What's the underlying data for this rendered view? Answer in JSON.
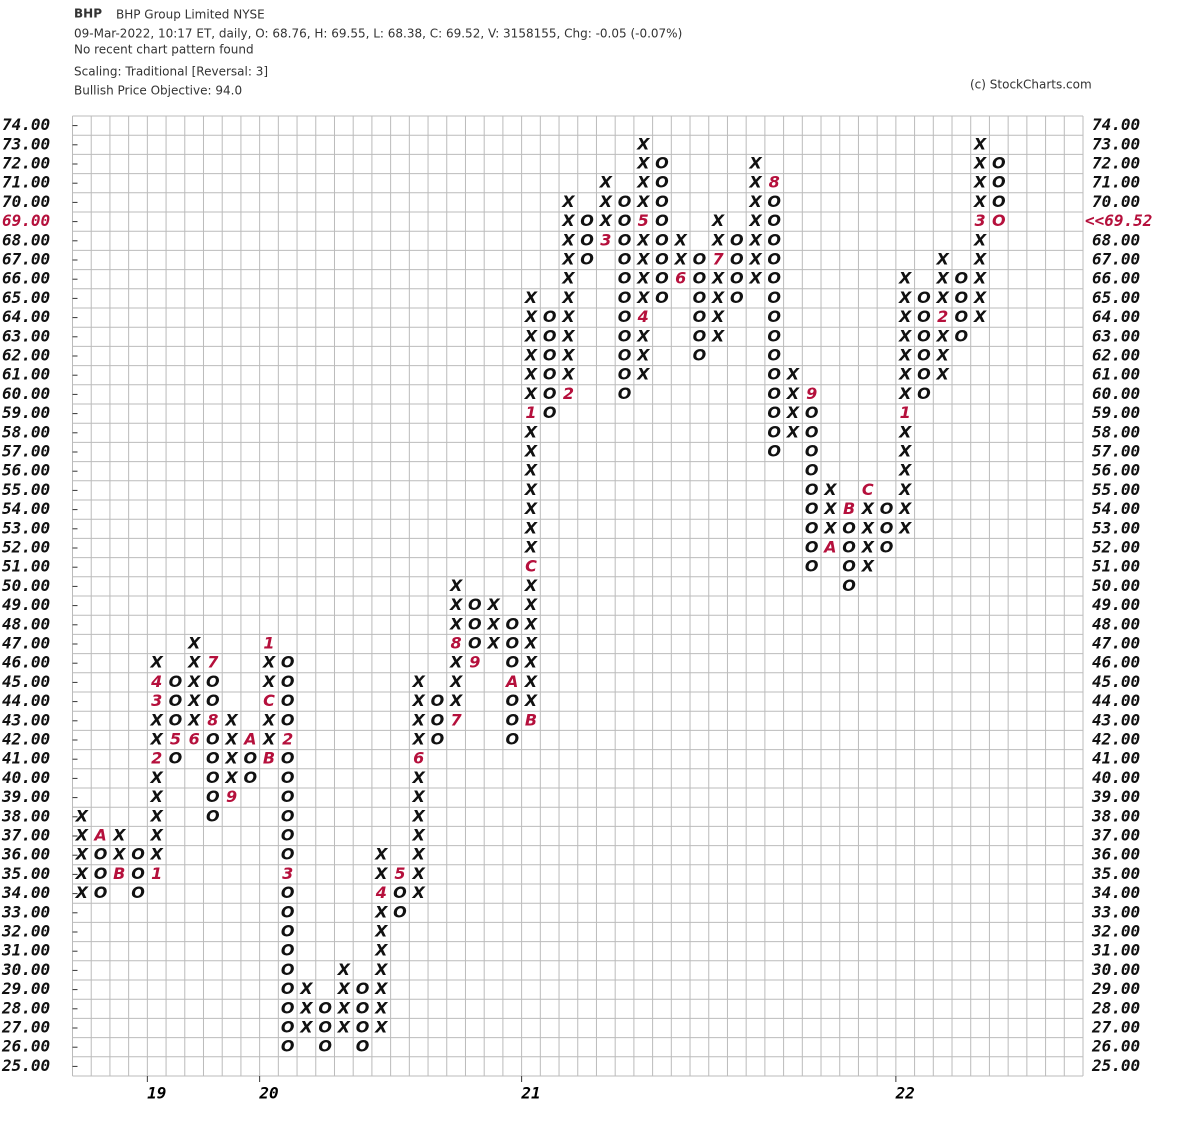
{
  "chart_data": {
    "type": "point_and_figure",
    "symbol": "BHP",
    "name": "BHP Group Limited  NYSE",
    "info": "09-Mar-2022, 10:17 ET, daily, O: 68.76, H: 69.55, L: 68.38, C: 69.52, V: 3158155, Chg: -0.05 (-0.07%)",
    "pattern": "No recent chart pattern found",
    "scaling": "Scaling: Traditional [Reversal: 3]",
    "objective": "Bullish Price Objective: 94.0",
    "credit": "(c) StockCharts.com",
    "last_price": {
      "value": 69.52,
      "label": "<<69.52"
    },
    "current_box": 69,
    "color": "#111111",
    "month_color": "#b5103c",
    "ylim": [
      24.5,
      74.5
    ],
    "yticks": [
      {
        "value": 25,
        "label": "25.00"
      },
      {
        "value": 26,
        "label": "26.00"
      },
      {
        "value": 27,
        "label": "27.00"
      },
      {
        "value": 28,
        "label": "28.00"
      },
      {
        "value": 29,
        "label": "29.00"
      },
      {
        "value": 30,
        "label": "30.00"
      },
      {
        "value": 31,
        "label": "31.00"
      },
      {
        "value": 32,
        "label": "32.00"
      },
      {
        "value": 33,
        "label": "33.00"
      },
      {
        "value": 34,
        "label": "34.00"
      },
      {
        "value": 35,
        "label": "35.00"
      },
      {
        "value": 36,
        "label": "36.00"
      },
      {
        "value": 37,
        "label": "37.00"
      },
      {
        "value": 38,
        "label": "38.00"
      },
      {
        "value": 39,
        "label": "39.00"
      },
      {
        "value": 40,
        "label": "40.00"
      },
      {
        "value": 41,
        "label": "41.00"
      },
      {
        "value": 42,
        "label": "42.00"
      },
      {
        "value": 43,
        "label": "43.00"
      },
      {
        "value": 44,
        "label": "44.00"
      },
      {
        "value": 45,
        "label": "45.00"
      },
      {
        "value": 46,
        "label": "46.00"
      },
      {
        "value": 47,
        "label": "47.00"
      },
      {
        "value": 48,
        "label": "48.00"
      },
      {
        "value": 49,
        "label": "49.00"
      },
      {
        "value": 50,
        "label": "50.00"
      },
      {
        "value": 51,
        "label": "51.00"
      },
      {
        "value": 52,
        "label": "52.00"
      },
      {
        "value": 53,
        "label": "53.00"
      },
      {
        "value": 54,
        "label": "54.00"
      },
      {
        "value": 55,
        "label": "55.00"
      },
      {
        "value": 56,
        "label": "56.00"
      },
      {
        "value": 57,
        "label": "57.00"
      },
      {
        "value": 58,
        "label": "58.00"
      },
      {
        "value": 59,
        "label": "59.00"
      },
      {
        "value": 60,
        "label": "60.00"
      },
      {
        "value": 61,
        "label": "61.00"
      },
      {
        "value": 62,
        "label": "62.00"
      },
      {
        "value": 63,
        "label": "63.00"
      },
      {
        "value": 64,
        "label": "64.00"
      },
      {
        "value": 65,
        "label": "65.00"
      },
      {
        "value": 66,
        "label": "66.00"
      },
      {
        "value": 67,
        "label": "67.00"
      },
      {
        "value": 68,
        "label": "68.00"
      },
      {
        "value": 69,
        "label": "69.00"
      },
      {
        "value": 70,
        "label": "70.00"
      },
      {
        "value": 71,
        "label": "71.00"
      },
      {
        "value": 72,
        "label": "72.00"
      },
      {
        "value": 73,
        "label": "73.00"
      },
      {
        "value": 74,
        "label": "74.00"
      }
    ],
    "year_labels": [
      {
        "column": 4,
        "label": "19"
      },
      {
        "column": 10,
        "label": "20"
      },
      {
        "column": 24,
        "label": "21"
      },
      {
        "column": 44,
        "label": "22"
      }
    ],
    "columns": [
      {
        "type": "X",
        "low": 34,
        "high": 38,
        "months": []
      },
      {
        "type": "O",
        "low": 34,
        "high": 37,
        "months": [
          {
            "value": 37,
            "label": "A"
          }
        ]
      },
      {
        "type": "X",
        "low": 35,
        "high": 37,
        "months": [
          {
            "value": 35,
            "label": "B"
          }
        ]
      },
      {
        "type": "O",
        "low": 34,
        "high": 36,
        "months": []
      },
      {
        "type": "X",
        "low": 35,
        "high": 46,
        "months": [
          {
            "value": 35,
            "label": "1"
          },
          {
            "value": 41,
            "label": "2"
          },
          {
            "value": 44,
            "label": "3"
          },
          {
            "value": 45,
            "label": "4"
          }
        ]
      },
      {
        "type": "O",
        "low": 41,
        "high": 45,
        "months": [
          {
            "value": 42,
            "label": "5"
          }
        ]
      },
      {
        "type": "X",
        "low": 42,
        "high": 47,
        "months": [
          {
            "value": 42,
            "label": "6"
          }
        ]
      },
      {
        "type": "O",
        "low": 38,
        "high": 46,
        "months": [
          {
            "value": 46,
            "label": "7"
          },
          {
            "value": 43,
            "label": "8"
          }
        ]
      },
      {
        "type": "X",
        "low": 39,
        "high": 43,
        "months": [
          {
            "value": 39,
            "label": "9"
          }
        ]
      },
      {
        "type": "O",
        "low": 40,
        "high": 42,
        "months": [
          {
            "value": 42,
            "label": "A"
          }
        ]
      },
      {
        "type": "X",
        "low": 41,
        "high": 47,
        "months": [
          {
            "value": 41,
            "label": "B"
          },
          {
            "value": 44,
            "label": "C"
          },
          {
            "value": 47,
            "label": "1"
          }
        ]
      },
      {
        "type": "O",
        "low": 26,
        "high": 46,
        "months": [
          {
            "value": 42,
            "label": "2"
          },
          {
            "value": 35,
            "label": "3"
          }
        ]
      },
      {
        "type": "X",
        "low": 27,
        "high": 29,
        "months": []
      },
      {
        "type": "O",
        "low": 26,
        "high": 28,
        "months": []
      },
      {
        "type": "X",
        "low": 27,
        "high": 30,
        "months": []
      },
      {
        "type": "O",
        "low": 26,
        "high": 29,
        "months": []
      },
      {
        "type": "X",
        "low": 27,
        "high": 36,
        "months": [
          {
            "value": 34,
            "label": "4"
          }
        ]
      },
      {
        "type": "O",
        "low": 33,
        "high": 35,
        "months": [
          {
            "value": 35,
            "label": "5"
          }
        ]
      },
      {
        "type": "X",
        "low": 34,
        "high": 45,
        "months": [
          {
            "value": 41,
            "label": "6"
          }
        ]
      },
      {
        "type": "O",
        "low": 42,
        "high": 44,
        "months": []
      },
      {
        "type": "X",
        "low": 43,
        "high": 50,
        "months": [
          {
            "value": 43,
            "label": "7"
          },
          {
            "value": 47,
            "label": "8"
          }
        ]
      },
      {
        "type": "O",
        "low": 46,
        "high": 49,
        "months": [
          {
            "value": 46,
            "label": "9"
          }
        ]
      },
      {
        "type": "X",
        "low": 47,
        "high": 49,
        "months": []
      },
      {
        "type": "O",
        "low": 42,
        "high": 48,
        "months": [
          {
            "value": 45,
            "label": "A"
          }
        ]
      },
      {
        "type": "X",
        "low": 43,
        "high": 65,
        "months": [
          {
            "value": 43,
            "label": "B"
          },
          {
            "value": 51,
            "label": "C"
          },
          {
            "value": 59,
            "label": "1"
          }
        ]
      },
      {
        "type": "O",
        "low": 59,
        "high": 64,
        "months": []
      },
      {
        "type": "X",
        "low": 60,
        "high": 70,
        "months": [
          {
            "value": 60,
            "label": "2"
          }
        ]
      },
      {
        "type": "O",
        "low": 67,
        "high": 69,
        "months": []
      },
      {
        "type": "X",
        "low": 68,
        "high": 71,
        "months": [
          {
            "value": 68,
            "label": "3"
          }
        ]
      },
      {
        "type": "O",
        "low": 60,
        "high": 70,
        "months": []
      },
      {
        "type": "X",
        "low": 61,
        "high": 73,
        "months": [
          {
            "value": 64,
            "label": "4"
          },
          {
            "value": 69,
            "label": "5"
          }
        ]
      },
      {
        "type": "O",
        "low": 65,
        "high": 72,
        "months": []
      },
      {
        "type": "X",
        "low": 66,
        "high": 68,
        "months": [
          {
            "value": 66,
            "label": "6"
          }
        ]
      },
      {
        "type": "O",
        "low": 62,
        "high": 67,
        "months": []
      },
      {
        "type": "X",
        "low": 63,
        "high": 69,
        "months": [
          {
            "value": 67,
            "label": "7"
          }
        ]
      },
      {
        "type": "O",
        "low": 65,
        "high": 68,
        "months": []
      },
      {
        "type": "X",
        "low": 66,
        "high": 72,
        "months": []
      },
      {
        "type": "O",
        "low": 57,
        "high": 71,
        "months": [
          {
            "value": 71,
            "label": "8"
          }
        ]
      },
      {
        "type": "X",
        "low": 58,
        "high": 61,
        "months": []
      },
      {
        "type": "O",
        "low": 51,
        "high": 60,
        "months": [
          {
            "value": 60,
            "label": "9"
          }
        ]
      },
      {
        "type": "X",
        "low": 52,
        "high": 55,
        "months": [
          {
            "value": 52,
            "label": "A"
          }
        ]
      },
      {
        "type": "O",
        "low": 50,
        "high": 54,
        "months": [
          {
            "value": 54,
            "label": "B"
          }
        ]
      },
      {
        "type": "X",
        "low": 51,
        "high": 55,
        "months": [
          {
            "value": 55,
            "label": "C"
          }
        ]
      },
      {
        "type": "O",
        "low": 52,
        "high": 54,
        "months": []
      },
      {
        "type": "X",
        "low": 53,
        "high": 66,
        "months": [
          {
            "value": 59,
            "label": "1"
          }
        ]
      },
      {
        "type": "O",
        "low": 60,
        "high": 65,
        "months": []
      },
      {
        "type": "X",
        "low": 61,
        "high": 67,
        "months": [
          {
            "value": 64,
            "label": "2"
          }
        ]
      },
      {
        "type": "O",
        "low": 63,
        "high": 66,
        "months": []
      },
      {
        "type": "X",
        "low": 64,
        "high": 73,
        "months": [
          {
            "value": 69,
            "label": "3"
          }
        ]
      },
      {
        "type": "O",
        "low": 69,
        "high": 72,
        "months": []
      }
    ]
  }
}
